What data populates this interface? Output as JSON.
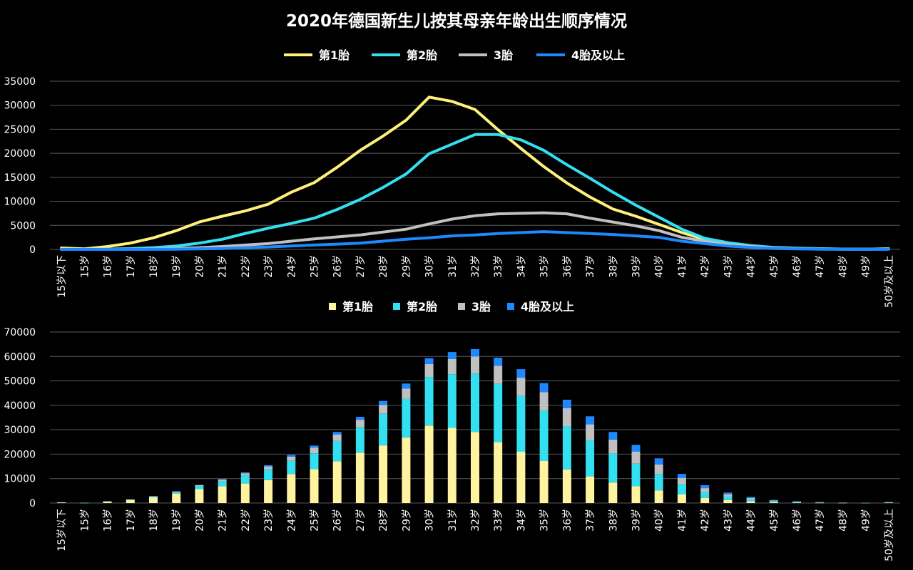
{
  "title": "2020年德国新生儿按其母亲年龄出生顺序情况",
  "colors": {
    "first": "#FFF07A",
    "first_bar": "#FFF3A0",
    "second": "#33E0F2",
    "third": "#C0C0C0",
    "fourth": "#1E88FF",
    "grid": "#5a5a5a",
    "background": "#000000",
    "text": "#FFFFFF"
  },
  "chart_data": [
    {
      "type": "line",
      "legend_position": "top",
      "grid": true,
      "ylim": [
        0,
        35000
      ],
      "yticks": [
        0,
        5000,
        10000,
        15000,
        20000,
        25000,
        30000,
        35000
      ],
      "categories": [
        "15岁以下",
        "15岁",
        "16岁",
        "17岁",
        "18岁",
        "19岁",
        "20岁",
        "21岁",
        "22岁",
        "23岁",
        "24岁",
        "25岁",
        "26岁",
        "27岁",
        "28岁",
        "29岁",
        "30岁",
        "31岁",
        "32岁",
        "33岁",
        "34岁",
        "35岁",
        "36岁",
        "37岁",
        "38岁",
        "39岁",
        "40岁",
        "41岁",
        "42岁",
        "43岁",
        "44岁",
        "45岁",
        "46岁",
        "47岁",
        "48岁",
        "49岁",
        "50岁及以上"
      ],
      "series": [
        {
          "name": "第1胎",
          "values": [
            300,
            100,
            600,
            1300,
            2400,
            3900,
            5700,
            6900,
            8000,
            9400,
            11900,
            13900,
            17100,
            20600,
            23600,
            26900,
            31700,
            30800,
            29100,
            24900,
            21000,
            17200,
            13800,
            10900,
            8400,
            6900,
            5200,
            3500,
            2100,
            1200,
            700,
            350,
            200,
            100,
            60,
            30,
            150
          ]
        },
        {
          "name": "第2胎",
          "values": [
            10,
            10,
            60,
            150,
            350,
            700,
            1300,
            2100,
            3300,
            4400,
            5400,
            6500,
            8300,
            10400,
            12900,
            15700,
            19900,
            21900,
            23900,
            23900,
            22800,
            20600,
            17600,
            14800,
            11900,
            9200,
            6700,
            4200,
            2300,
            1400,
            800,
            400,
            250,
            150,
            80,
            40,
            120
          ]
        },
        {
          "name": "3胎",
          "values": [
            0,
            0,
            10,
            30,
            80,
            200,
            350,
            600,
            900,
            1200,
            1700,
            2200,
            2600,
            3000,
            3600,
            4200,
            5300,
            6300,
            7000,
            7400,
            7500,
            7600,
            7400,
            6500,
            5700,
            4900,
            3900,
            2500,
            1700,
            1000,
            600,
            300,
            150,
            80,
            40,
            20,
            60
          ]
        },
        {
          "name": "4胎及以上",
          "values": [
            0,
            0,
            0,
            5,
            20,
            50,
            100,
            200,
            350,
            500,
            700,
            900,
            1100,
            1300,
            1700,
            2100,
            2400,
            2800,
            3000,
            3300,
            3500,
            3700,
            3500,
            3300,
            3100,
            2800,
            2500,
            1700,
            1200,
            700,
            400,
            200,
            100,
            50,
            30,
            10,
            40
          ]
        }
      ]
    },
    {
      "type": "bar",
      "stacked": true,
      "legend_position": "top",
      "grid": true,
      "ylim": [
        0,
        70000
      ],
      "yticks": [
        0,
        10000,
        20000,
        30000,
        40000,
        50000,
        60000,
        70000
      ],
      "categories": [
        "15岁以下",
        "15岁",
        "16岁",
        "17岁",
        "18岁",
        "19岁",
        "20岁",
        "21岁",
        "22岁",
        "23岁",
        "24岁",
        "25岁",
        "26岁",
        "27岁",
        "28岁",
        "29岁",
        "30岁",
        "31岁",
        "32岁",
        "33岁",
        "34岁",
        "35岁",
        "36岁",
        "37岁",
        "38岁",
        "39岁",
        "40岁",
        "41岁",
        "42岁",
        "43岁",
        "44岁",
        "45岁",
        "46岁",
        "47岁",
        "48岁",
        "49岁",
        "50岁及以上"
      ],
      "series": [
        {
          "name": "第1胎",
          "values": [
            300,
            100,
            600,
            1300,
            2400,
            3900,
            5700,
            6900,
            8000,
            9400,
            11900,
            13900,
            17100,
            20600,
            23600,
            26900,
            31700,
            30800,
            29100,
            24900,
            21000,
            17200,
            13800,
            10900,
            8400,
            6900,
            5200,
            3500,
            2100,
            1200,
            700,
            350,
            200,
            100,
            60,
            30,
            150
          ]
        },
        {
          "name": "第2胎",
          "values": [
            10,
            10,
            60,
            150,
            350,
            700,
            1300,
            2100,
            3300,
            4400,
            5400,
            6500,
            8300,
            10400,
            12900,
            15700,
            19900,
            21900,
            23900,
            23900,
            22800,
            20600,
            17600,
            14800,
            11900,
            9200,
            6700,
            4200,
            2300,
            1400,
            800,
            400,
            250,
            150,
            80,
            40,
            120
          ]
        },
        {
          "name": "3胎",
          "values": [
            0,
            0,
            10,
            30,
            80,
            200,
            350,
            600,
            900,
            1200,
            1700,
            2200,
            2600,
            3000,
            3600,
            4200,
            5300,
            6300,
            7000,
            7400,
            7500,
            7600,
            7400,
            6500,
            5700,
            4900,
            3900,
            2500,
            1700,
            1000,
            600,
            300,
            150,
            80,
            40,
            20,
            60
          ]
        },
        {
          "name": "4胎及以上",
          "values": [
            0,
            0,
            0,
            5,
            20,
            50,
            100,
            200,
            350,
            500,
            700,
            900,
            1100,
            1300,
            1700,
            2100,
            2400,
            2800,
            3000,
            3300,
            3500,
            3700,
            3500,
            3300,
            3100,
            2800,
            2500,
            1700,
            1200,
            700,
            400,
            200,
            100,
            50,
            30,
            10,
            40
          ]
        }
      ]
    }
  ]
}
